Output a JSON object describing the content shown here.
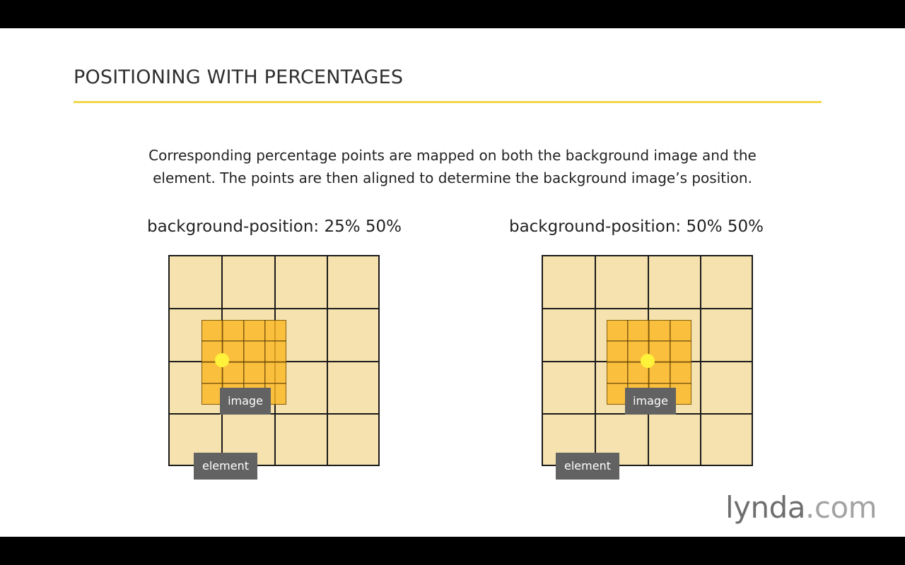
{
  "slide": {
    "title": "POSITIONING WITH PERCENTAGES",
    "description_line1": "Corresponding percentage points are mapped on both the background image and the",
    "description_line2": "element. The points are then aligned to determine the background image’s position."
  },
  "diagrams": [
    {
      "caption": "background-position: 25% 50%",
      "anchor_percent_x": 25,
      "anchor_percent_y": 50,
      "image_label": "image",
      "element_label": "element"
    },
    {
      "caption": "background-position: 50% 50%",
      "anchor_percent_x": 50,
      "anchor_percent_y": 50,
      "image_label": "image",
      "element_label": "element"
    }
  ],
  "brand": {
    "name": "lynda",
    "suffix": ".com"
  },
  "colors": {
    "accent_rule": "#f3d64a",
    "element_fill": "#f5e2ae",
    "image_fill": "#fdb726",
    "anchor_dot": "#fff23a",
    "label_box": "#626262"
  }
}
